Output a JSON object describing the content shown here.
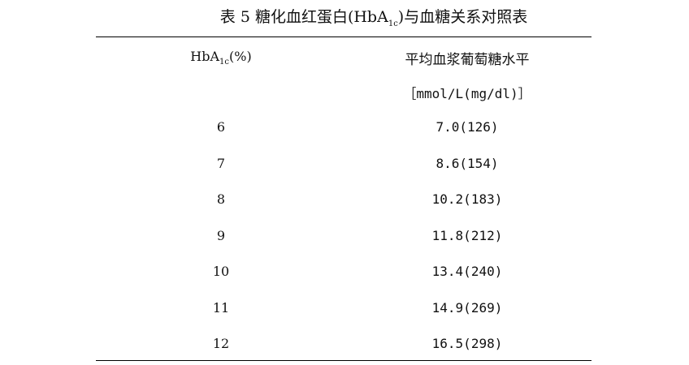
{
  "title": {
    "prefix": "表 5  糖化血红蛋白(HbA",
    "sub": "1c",
    "suffix": ")与血糖关系对照表"
  },
  "headers": {
    "col1": {
      "main": "HbA",
      "sub": "1c",
      "suffix": "(%)"
    },
    "col2_line1": "平均血浆葡萄糖水平",
    "col2_line2": "［mmol/L(mg/dl)］"
  },
  "rows": [
    {
      "hba1c": "6",
      "glucose": "7.0(126)"
    },
    {
      "hba1c": "7",
      "glucose": "8.6(154)"
    },
    {
      "hba1c": "8",
      "glucose": "10.2(183)"
    },
    {
      "hba1c": "9",
      "glucose": "11.8(212)"
    },
    {
      "hba1c": "10",
      "glucose": "13.4(240)"
    },
    {
      "hba1c": "11",
      "glucose": "14.9(269)"
    },
    {
      "hba1c": "12",
      "glucose": "16.5(298)"
    }
  ]
}
